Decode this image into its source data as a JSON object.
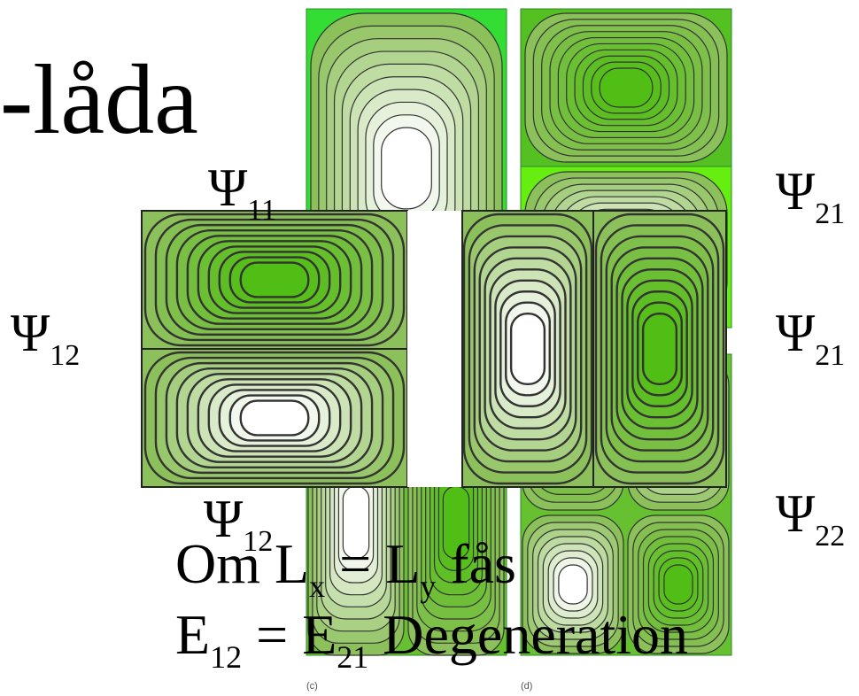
{
  "title": "-låda",
  "labels": [
    {
      "symbol": "Ψ",
      "subscript": "11"
    },
    {
      "symbol": "Ψ",
      "subscript": "21"
    },
    {
      "symbol": "Ψ",
      "subscript": "12"
    },
    {
      "symbol": "Ψ",
      "subscript": "21"
    },
    {
      "symbol": "Ψ",
      "subscript": "12"
    },
    {
      "symbol": "Ψ",
      "subscript": "22"
    }
  ],
  "lines": [
    [
      "Om L",
      "x",
      " = L",
      "y",
      " fås"
    ],
    [
      "E",
      "12",
      " = E",
      "21",
      " Degeneration"
    ]
  ],
  "captions": [
    "(c)",
    "(d)"
  ]
}
